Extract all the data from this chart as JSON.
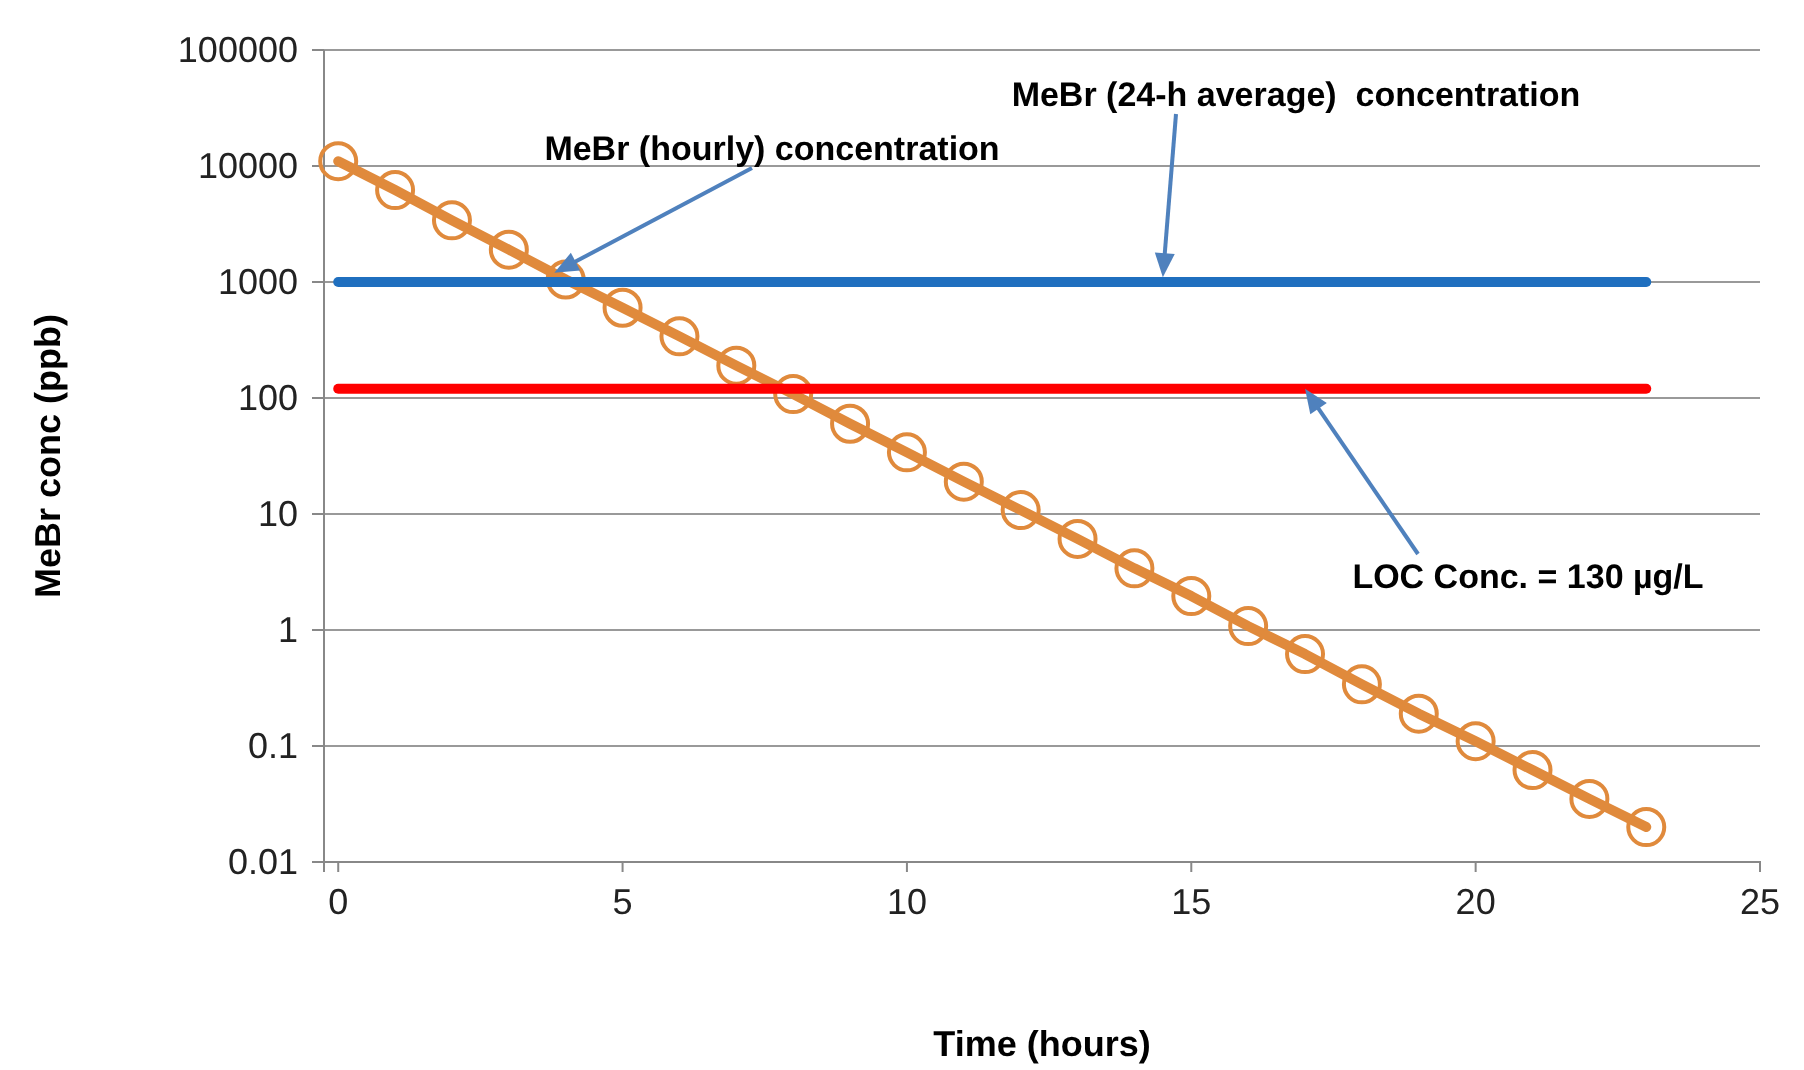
{
  "chart_data": {
    "type": "line",
    "xlabel": "Time (hours)",
    "ylabel": "MeBr conc (ppb)",
    "log": "y",
    "grid": "y",
    "xlim": [
      -0.25,
      25
    ],
    "xticks": [
      0,
      5,
      10,
      15,
      20,
      25
    ],
    "ylim": [
      0.01,
      100000
    ],
    "yticks": [
      0.01,
      0.1,
      1,
      10,
      100,
      1000,
      10000,
      100000
    ],
    "series": [
      {
        "color": "#e08a3c",
        "marker": "circle",
        "x": [
          0,
          1,
          2,
          3,
          4,
          5,
          6,
          7,
          8,
          9,
          10,
          11,
          12,
          13,
          14,
          15,
          16,
          17,
          18,
          19,
          20,
          21,
          22,
          23
        ],
        "values": [
          11000,
          6200,
          3400,
          1900,
          1050,
          600,
          340,
          190,
          108,
          60,
          34,
          19,
          10.8,
          6.1,
          3.4,
          1.96,
          1.08,
          0.62,
          0.34,
          0.19,
          0.11,
          0.062,
          0.035,
          0.02
        ]
      },
      {
        "color": "#1f6fbf",
        "marker": "none",
        "x": [
          0,
          23
        ],
        "values": [
          1000,
          1000
        ]
      },
      {
        "color": "#ff0000",
        "marker": "none",
        "x": [
          0,
          23
        ],
        "values": [
          120,
          120
        ]
      }
    ],
    "annotations": [
      {
        "text": "MeBr (hourly) concentration",
        "x": 3.8,
        "y": 1200
      },
      {
        "text": "MeBr (24-h average)  concentration",
        "x": 14.5,
        "y": 1100
      },
      {
        "text": "LOC Conc. = 130 µg/L",
        "x": 17,
        "y": 120
      }
    ]
  }
}
